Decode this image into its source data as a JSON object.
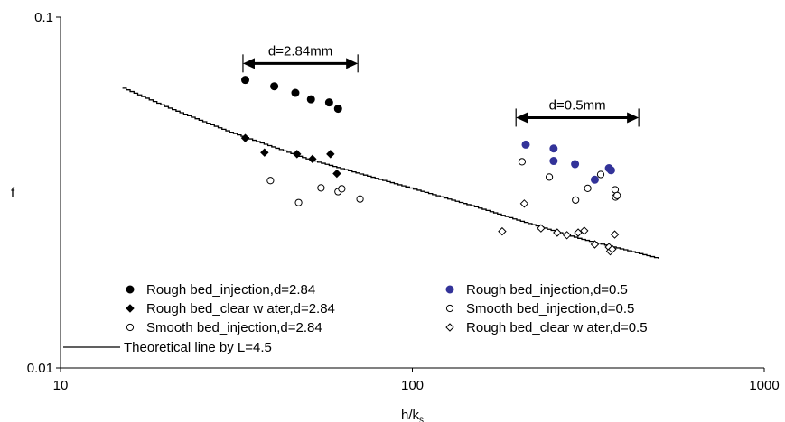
{
  "chart_data": {
    "type": "scatter",
    "xlabel": "h/k",
    "xlabel_sub": "s",
    "ylabel": "f",
    "x_scale": "log",
    "y_scale": "log",
    "xlim": [
      10,
      1000
    ],
    "ylim": [
      0.01,
      0.1
    ],
    "x_ticks": [
      {
        "value": 10,
        "label": "10"
      },
      {
        "value": 100,
        "label": "100"
      },
      {
        "value": 1000,
        "label": "1000"
      }
    ],
    "y_ticks": [
      {
        "value": 0.01,
        "label": "0.01"
      },
      {
        "value": 0.1,
        "label": "0.1"
      }
    ],
    "grid": false,
    "legend_position": "bottom",
    "annotations": [
      {
        "text": "d=2.84mm",
        "x_from": 33,
        "x_to": 70,
        "y": 0.0738
      },
      {
        "text": "d=0.5mm",
        "x_from": 197,
        "x_to": 440,
        "y": 0.0517
      }
    ],
    "series": [
      {
        "name": "Rough bed_injection,d=2.84",
        "marker": "filled-circle",
        "color": "#000000",
        "x": [
          33.5,
          40.5,
          46.5,
          51.5,
          58,
          61.5
        ],
        "y": [
          0.0662,
          0.0635,
          0.0608,
          0.0583,
          0.0571,
          0.0548
        ]
      },
      {
        "name": "Rough bed_clear w ater,d=2.84",
        "marker": "filled-diamond",
        "color": "#000000",
        "x": [
          33.5,
          38,
          47,
          52,
          58.5,
          61
        ],
        "y": [
          0.0452,
          0.0411,
          0.0407,
          0.0394,
          0.0407,
          0.0358
        ]
      },
      {
        "name": "Smooth bed_injection,d=2.84",
        "marker": "open-circle",
        "color": "#000000",
        "x": [
          39.5,
          47.5,
          55,
          61.5,
          63,
          71
        ],
        "y": [
          0.0342,
          0.0296,
          0.0326,
          0.0318,
          0.0324,
          0.0303
        ]
      },
      {
        "name": "Rough bed_injection,d=0.5",
        "marker": "filled-circle",
        "color": "#333399",
        "x": [
          210,
          252,
          252,
          290,
          330,
          362,
          367
        ],
        "y": [
          0.0433,
          0.0422,
          0.0389,
          0.0381,
          0.0344,
          0.0371,
          0.0366
        ]
      },
      {
        "name": "Smooth bed_injection,d=0.5",
        "marker": "open-circle",
        "color": "#000000",
        "x": [
          205,
          245,
          291,
          315,
          343,
          377,
          378,
          382
        ],
        "y": [
          0.0387,
          0.035,
          0.0301,
          0.0325,
          0.0356,
          0.0322,
          0.0307,
          0.031
        ]
      },
      {
        "name": "Rough bed_clear w ater,d=0.5",
        "marker": "open-diamond",
        "color": "#000000",
        "x": [
          180,
          208,
          232,
          258,
          275,
          296,
          308,
          330,
          362,
          365,
          370,
          376
        ],
        "y": [
          0.0245,
          0.0294,
          0.025,
          0.0243,
          0.0239,
          0.0243,
          0.0246,
          0.0225,
          0.0221,
          0.0215,
          0.0218,
          0.024
        ]
      }
    ],
    "line_series": {
      "name": "Theoretical line by L=4.5",
      "color": "#000000",
      "x": [
        15,
        20,
        30,
        50,
        100,
        150,
        200,
        300,
        400,
        500
      ],
      "y": [
        0.0627,
        0.0553,
        0.0471,
        0.0394,
        0.0324,
        0.0288,
        0.0263,
        0.0233,
        0.0217,
        0.0205
      ]
    }
  }
}
